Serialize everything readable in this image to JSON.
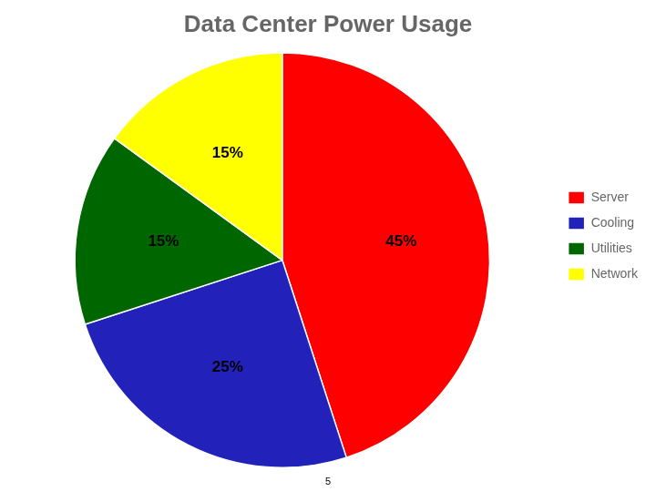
{
  "chart_data": {
    "type": "pie",
    "title": "Data Center Power Usage",
    "categories": [
      "Server",
      "Cooling",
      "Utilities",
      "Network"
    ],
    "values": [
      45,
      25,
      15,
      15
    ],
    "value_labels": [
      "45%",
      "25%",
      "15%",
      "15%"
    ],
    "colors": [
      "#ff0000",
      "#2222bb",
      "#006600",
      "#ffff00"
    ],
    "data_labels": true,
    "legend": "right",
    "annotations": [
      "5"
    ]
  }
}
